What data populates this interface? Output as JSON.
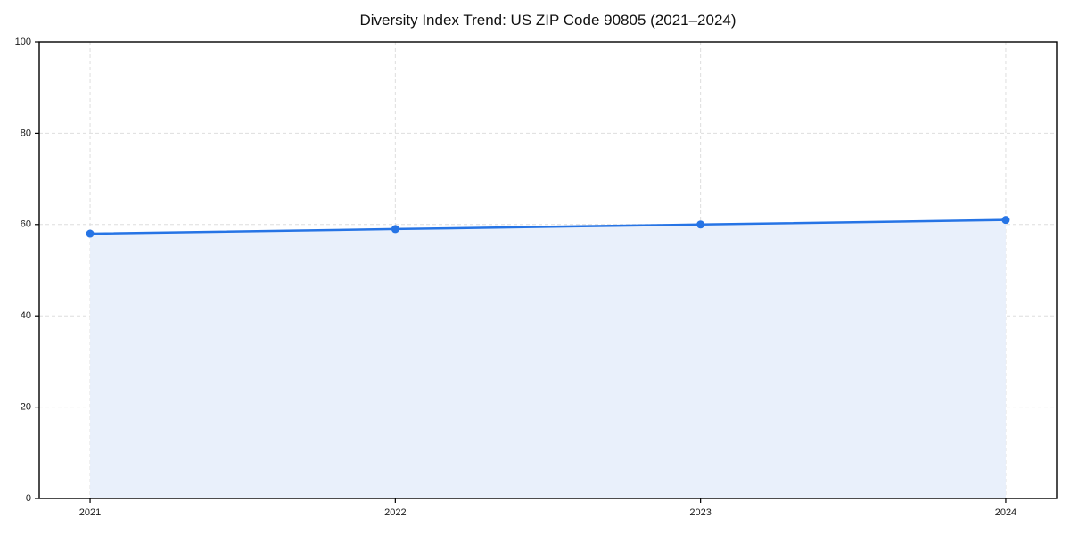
{
  "chart_data": {
    "type": "area",
    "title": "Diversity Index Trend: US ZIP Code 90805 (2021–2024)",
    "x": [
      "2021",
      "2022",
      "2023",
      "2024"
    ],
    "series": [
      {
        "name": "Diversity Index",
        "values": [
          58,
          59,
          60,
          61
        ]
      }
    ],
    "xlabel": "",
    "ylabel": "",
    "ylim": [
      0,
      100
    ],
    "yticks": [
      0,
      20,
      40,
      60,
      80,
      100
    ],
    "grid": true,
    "grid_style": "dashed",
    "legend_position": "none",
    "colors": {
      "line": "#2674e5",
      "marker": "#2674e5",
      "fill": "#e9f0fb",
      "grid": "#dedede",
      "spine": "#000000",
      "tick_label": "#1a1a1a"
    }
  }
}
